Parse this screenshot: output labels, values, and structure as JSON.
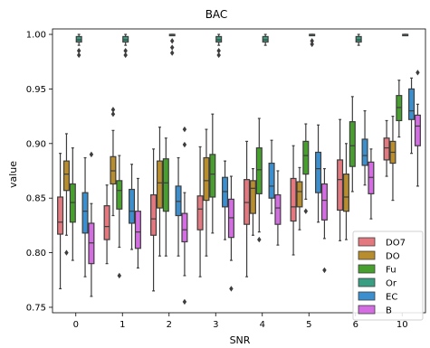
{
  "chart_data": {
    "type": "boxplot",
    "title": "BAC",
    "xlabel": "SNR",
    "ylabel": "value",
    "categories": [
      "0",
      "1",
      "2",
      "3",
      "4",
      "5",
      "6",
      "10"
    ],
    "ylim": [
      0.745,
      1.005
    ],
    "yticks": [
      "0.75",
      "0.80",
      "0.85",
      "0.90",
      "0.95",
      "1.00"
    ],
    "grid": false,
    "legend_position": "bottom-right",
    "series": [
      {
        "name": "DO7",
        "color": "#e3787f",
        "boxes": [
          {
            "wl": 0.767,
            "q1": 0.817,
            "med": 0.828,
            "q3": 0.851,
            "wh": 0.891,
            "fliers": []
          },
          {
            "wl": 0.79,
            "q1": 0.812,
            "med": 0.824,
            "q3": 0.843,
            "wh": 0.862,
            "fliers": []
          },
          {
            "wl": 0.765,
            "q1": 0.816,
            "med": 0.831,
            "q3": 0.853,
            "wh": 0.895,
            "fliers": []
          },
          {
            "wl": 0.778,
            "q1": 0.821,
            "med": 0.84,
            "q3": 0.852,
            "wh": 0.897,
            "fliers": []
          },
          {
            "wl": 0.778,
            "q1": 0.826,
            "med": 0.846,
            "q3": 0.867,
            "wh": 0.902,
            "fliers": []
          },
          {
            "wl": 0.798,
            "q1": 0.829,
            "med": 0.842,
            "q3": 0.868,
            "wh": 0.898,
            "fliers": []
          },
          {
            "wl": 0.811,
            "q1": 0.839,
            "med": 0.867,
            "q3": 0.885,
            "wh": 0.922,
            "fliers": []
          },
          {
            "wl": 0.87,
            "q1": 0.885,
            "med": 0.896,
            "q3": 0.905,
            "wh": 0.921,
            "fliers": []
          }
        ]
      },
      {
        "name": "DO",
        "color": "#b78d2d",
        "boxes": [
          {
            "wl": 0.816,
            "q1": 0.857,
            "med": 0.872,
            "q3": 0.884,
            "wh": 0.909,
            "fliers": [
              0.8
            ]
          },
          {
            "wl": 0.834,
            "q1": 0.863,
            "med": 0.875,
            "q3": 0.888,
            "wh": 0.912,
            "fliers": [
              0.931,
              0.927
            ]
          },
          {
            "wl": 0.797,
            "q1": 0.841,
            "med": 0.864,
            "q3": 0.884,
            "wh": 0.915,
            "fliers": []
          },
          {
            "wl": 0.797,
            "q1": 0.848,
            "med": 0.866,
            "q3": 0.887,
            "wh": 0.913,
            "fliers": []
          },
          {
            "wl": 0.816,
            "q1": 0.836,
            "med": 0.859,
            "q3": 0.866,
            "wh": 0.877,
            "fliers": []
          },
          {
            "wl": 0.821,
            "q1": 0.842,
            "med": 0.856,
            "q3": 0.865,
            "wh": 0.878,
            "fliers": []
          },
          {
            "wl": 0.812,
            "q1": 0.838,
            "med": 0.851,
            "q3": 0.872,
            "wh": 0.9,
            "fliers": []
          },
          {
            "wl": 0.848,
            "q1": 0.882,
            "med": 0.892,
            "q3": 0.902,
            "wh": 0.925,
            "fliers": []
          }
        ]
      },
      {
        "name": "Fu",
        "color": "#47a02d",
        "boxes": [
          {
            "wl": 0.793,
            "q1": 0.828,
            "med": 0.846,
            "q3": 0.863,
            "wh": 0.896,
            "fliers": []
          },
          {
            "wl": 0.805,
            "q1": 0.84,
            "med": 0.857,
            "q3": 0.866,
            "wh": 0.889,
            "fliers": [
              0.779
            ]
          },
          {
            "wl": 0.797,
            "q1": 0.838,
            "med": 0.864,
            "q3": 0.886,
            "wh": 0.905,
            "fliers": []
          },
          {
            "wl": 0.818,
            "q1": 0.851,
            "med": 0.872,
            "q3": 0.89,
            "wh": 0.927,
            "fliers": []
          },
          {
            "wl": 0.819,
            "q1": 0.854,
            "med": 0.876,
            "q3": 0.896,
            "wh": 0.923,
            "fliers": [
              0.812
            ]
          },
          {
            "wl": 0.849,
            "q1": 0.872,
            "med": 0.889,
            "q3": 0.902,
            "wh": 0.918,
            "fliers": [
              0.838
            ]
          },
          {
            "wl": 0.856,
            "q1": 0.879,
            "med": 0.898,
            "q3": 0.92,
            "wh": 0.943,
            "fliers": []
          },
          {
            "wl": 0.906,
            "q1": 0.921,
            "med": 0.933,
            "q3": 0.944,
            "wh": 0.958,
            "fliers": []
          }
        ]
      },
      {
        "name": "Or",
        "color": "#3a9e82",
        "boxes": [
          {
            "wl": 0.99,
            "q1": 0.993,
            "med": 0.995,
            "q3": 0.998,
            "wh": 1.0,
            "fliers": [
              0.985,
              0.981
            ]
          },
          {
            "wl": 0.99,
            "q1": 0.993,
            "med": 0.995,
            "q3": 0.998,
            "wh": 1.0,
            "fliers": [
              0.985,
              0.981
            ]
          },
          {
            "wl": 1.0,
            "q1": 1.0,
            "med": 1.0,
            "q3": 1.0,
            "wh": 1.0,
            "fliers": [
              0.994,
              0.988,
              0.983
            ]
          },
          {
            "wl": 0.99,
            "q1": 0.993,
            "med": 0.995,
            "q3": 0.998,
            "wh": 1.0,
            "fliers": [
              0.985,
              0.981
            ]
          },
          {
            "wl": 0.99,
            "q1": 0.993,
            "med": 0.995,
            "q3": 0.998,
            "wh": 1.0,
            "fliers": []
          },
          {
            "wl": 1.0,
            "q1": 1.0,
            "med": 1.0,
            "q3": 1.0,
            "wh": 1.0,
            "fliers": [
              0.994,
              0.991
            ]
          },
          {
            "wl": 0.99,
            "q1": 0.993,
            "med": 0.995,
            "q3": 0.998,
            "wh": 1.0,
            "fliers": []
          },
          {
            "wl": 1.0,
            "q1": 1.0,
            "med": 1.0,
            "q3": 1.0,
            "wh": 1.0,
            "fliers": []
          }
        ]
      },
      {
        "name": "EC",
        "color": "#3b8fcf",
        "boxes": [
          {
            "wl": 0.778,
            "q1": 0.818,
            "med": 0.838,
            "q3": 0.855,
            "wh": 0.887,
            "fliers": []
          },
          {
            "wl": 0.803,
            "q1": 0.827,
            "med": 0.838,
            "q3": 0.858,
            "wh": 0.881,
            "fliers": []
          },
          {
            "wl": 0.797,
            "q1": 0.834,
            "med": 0.847,
            "q3": 0.861,
            "wh": 0.887,
            "fliers": []
          },
          {
            "wl": 0.812,
            "q1": 0.842,
            "med": 0.856,
            "q3": 0.869,
            "wh": 0.884,
            "fliers": []
          },
          {
            "wl": 0.836,
            "q1": 0.85,
            "med": 0.861,
            "q3": 0.882,
            "wh": 0.903,
            "fliers": []
          },
          {
            "wl": 0.828,
            "q1": 0.855,
            "med": 0.877,
            "q3": 0.892,
            "wh": 0.917,
            "fliers": []
          },
          {
            "wl": 0.862,
            "q1": 0.88,
            "med": 0.889,
            "q3": 0.904,
            "wh": 0.93,
            "fliers": []
          },
          {
            "wl": 0.891,
            "q1": 0.922,
            "med": 0.93,
            "q3": 0.95,
            "wh": 0.96,
            "fliers": []
          }
        ]
      },
      {
        "name": "B",
        "color": "#d36de1",
        "boxes": [
          {
            "wl": 0.76,
            "q1": 0.79,
            "med": 0.809,
            "q3": 0.827,
            "wh": 0.845,
            "fliers": [
              0.89
            ]
          },
          {
            "wl": 0.786,
            "q1": 0.804,
            "med": 0.819,
            "q3": 0.838,
            "wh": 0.868,
            "fliers": []
          },
          {
            "wl": 0.779,
            "q1": 0.81,
            "med": 0.821,
            "q3": 0.836,
            "wh": 0.855,
            "fliers": [
              0.913,
              0.899,
              0.755
            ]
          },
          {
            "wl": 0.793,
            "q1": 0.814,
            "med": 0.832,
            "q3": 0.849,
            "wh": 0.87,
            "fliers": [
              0.767
            ]
          },
          {
            "wl": 0.807,
            "q1": 0.826,
            "med": 0.841,
            "q3": 0.853,
            "wh": 0.875,
            "fliers": []
          },
          {
            "wl": 0.813,
            "q1": 0.83,
            "med": 0.848,
            "q3": 0.863,
            "wh": 0.877,
            "fliers": [
              0.784
            ]
          },
          {
            "wl": 0.831,
            "q1": 0.854,
            "med": 0.869,
            "q3": 0.883,
            "wh": 0.895,
            "fliers": []
          },
          {
            "wl": 0.861,
            "q1": 0.898,
            "med": 0.916,
            "q3": 0.926,
            "wh": 0.936,
            "fliers": [
              0.965
            ]
          }
        ]
      }
    ]
  }
}
